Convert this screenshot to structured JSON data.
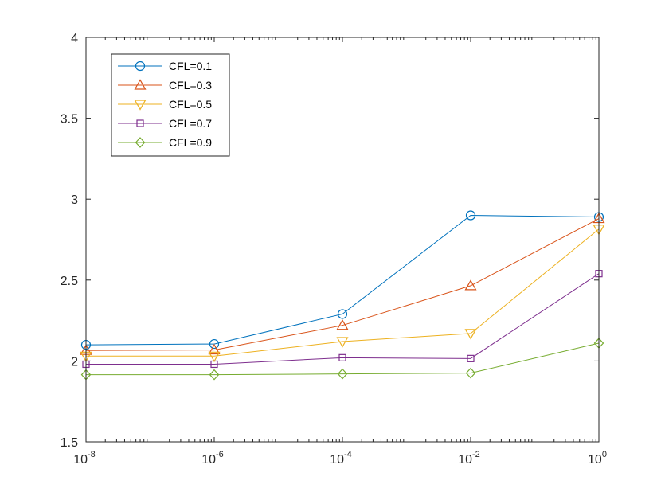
{
  "chart_data": {
    "type": "line",
    "title": "",
    "xlabel": "",
    "ylabel": "",
    "x_scale": "log",
    "x": [
      1e-08,
      1e-06,
      0.0001,
      0.01,
      1
    ],
    "xlim": [
      1e-08,
      1
    ],
    "ylim": [
      1.5,
      4
    ],
    "x_ticks": [
      {
        "value": 1e-08,
        "base": "10",
        "exp": "-8"
      },
      {
        "value": 1e-06,
        "base": "10",
        "exp": "-6"
      },
      {
        "value": 0.0001,
        "base": "10",
        "exp": "-4"
      },
      {
        "value": 0.01,
        "base": "10",
        "exp": "-2"
      },
      {
        "value": 1,
        "base": "10",
        "exp": "0"
      }
    ],
    "y_ticks": [
      {
        "value": 1.5,
        "label": "1.5"
      },
      {
        "value": 2,
        "label": "2"
      },
      {
        "value": 2.5,
        "label": "2.5"
      },
      {
        "value": 3,
        "label": "3"
      },
      {
        "value": 3.5,
        "label": "3.5"
      },
      {
        "value": 4,
        "label": "4"
      }
    ],
    "grid": false,
    "box": true,
    "legend_position": "top-left",
    "series": [
      {
        "name": "CFL=0.1",
        "values": [
          2.1,
          2.105,
          2.29,
          2.9,
          2.89
        ],
        "color": "#0072BD",
        "marker": "circle"
      },
      {
        "name": "CFL=0.3",
        "values": [
          2.065,
          2.068,
          2.22,
          2.465,
          2.88
        ],
        "color": "#D95319",
        "marker": "triangle-up"
      },
      {
        "name": "CFL=0.5",
        "values": [
          2.03,
          2.03,
          2.12,
          2.17,
          2.815
        ],
        "color": "#EDB120",
        "marker": "triangle-down"
      },
      {
        "name": "CFL=0.7",
        "values": [
          1.98,
          1.98,
          2.02,
          2.015,
          2.54
        ],
        "color": "#7E2F8E",
        "marker": "square"
      },
      {
        "name": "CFL=0.9",
        "values": [
          1.915,
          1.915,
          1.92,
          1.925,
          2.11
        ],
        "color": "#77AC30",
        "marker": "diamond"
      }
    ]
  }
}
